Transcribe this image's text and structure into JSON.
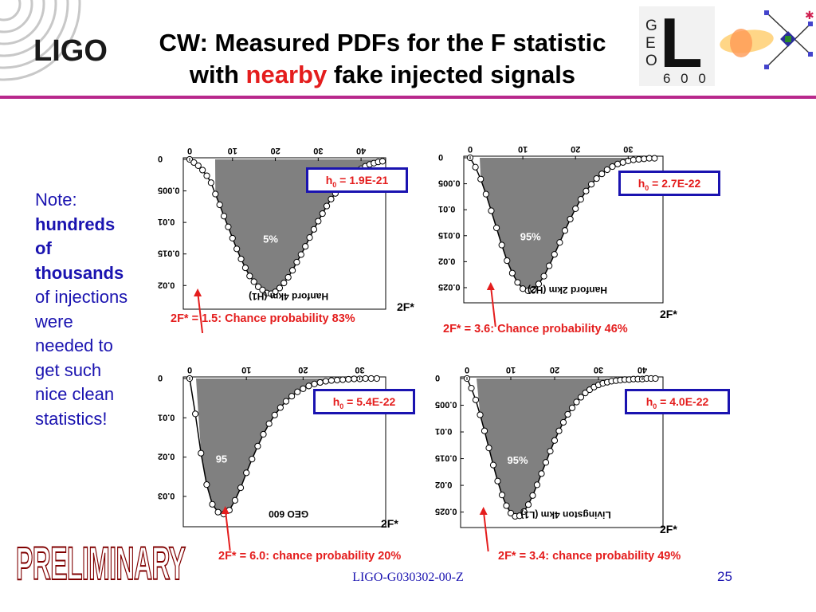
{
  "header": {
    "logo_text": "LIGO",
    "title_line1": "CW: Measured PDFs for the F statistic",
    "title_line2_pre": "with ",
    "title_line2_highlight": "nearby",
    "title_line2_post": " fake injected signals",
    "geo600_logo": {
      "letters": [
        "G",
        "E",
        "O"
      ],
      "big_letter": "L",
      "digits": "6 0 0"
    }
  },
  "note": {
    "line1": "Note:",
    "bold": [
      "hundreds",
      "of",
      "thousands"
    ],
    "rest": [
      "of injections",
      "were",
      "needed to",
      "get such",
      "nice clean",
      "statistics!"
    ]
  },
  "colors": {
    "accent_red": "#e41d1d",
    "note_blue": "#1a13b0",
    "header_rule": "#b8288c",
    "fill_gray": "#808080"
  },
  "chart_data": [
    {
      "type": "area",
      "detector_label": "Hanford 4km (H1)",
      "h0_label": "h0 = 1.9E-21",
      "percent_label": "5%",
      "xlabel": "2F*",
      "xticks": [
        "0",
        "10",
        "20",
        "30",
        "40"
      ],
      "yticks": [
        "0",
        "0.005",
        "0.01",
        "0.015",
        "0.02"
      ],
      "xlim": [
        0,
        45
      ],
      "ylim": [
        0,
        0.023
      ],
      "marker_x": 1.5,
      "caption": "2F* = 1.5: Chance probability 83%",
      "x": [
        0,
        1,
        2,
        3,
        4,
        5,
        6,
        7,
        8,
        9,
        10,
        11,
        12,
        13,
        14,
        15,
        16,
        17,
        18,
        19,
        20,
        21,
        22,
        23,
        24,
        25,
        26,
        27,
        28,
        29,
        30,
        31,
        32,
        33,
        34,
        35,
        36,
        37,
        38,
        39,
        40,
        41,
        42,
        43,
        44,
        45
      ],
      "y": [
        0,
        0.0005,
        0.001,
        0.0017,
        0.0026,
        0.0037,
        0.0055,
        0.0072,
        0.009,
        0.0107,
        0.0125,
        0.0142,
        0.0158,
        0.0172,
        0.0185,
        0.0194,
        0.0202,
        0.0207,
        0.0212,
        0.0213,
        0.021,
        0.0204,
        0.0196,
        0.0187,
        0.0176,
        0.0163,
        0.0151,
        0.0138,
        0.0124,
        0.0111,
        0.0098,
        0.0086,
        0.0074,
        0.0063,
        0.0054,
        0.0045,
        0.0037,
        0.003,
        0.0024,
        0.0019,
        0.0015,
        0.0011,
        0.0008,
        0.0006,
        0.0004,
        0.0003
      ]
    },
    {
      "type": "area",
      "detector_label": "Hanford 2km (H2)",
      "h0_label": "h0 = 2.7E-22",
      "percent_label": "95%",
      "xlabel": "2F*",
      "xticks": [
        "0",
        "10",
        "20",
        "30"
      ],
      "yticks": [
        "0",
        "0.005",
        "0.01",
        "0.015",
        "0.02",
        "0.025"
      ],
      "xlim": [
        0,
        36
      ],
      "ylim": [
        0,
        0.027
      ],
      "marker_x": 3.6,
      "caption": "2F* = 3.6: Chance probability 46%",
      "x": [
        0,
        1,
        2,
        3,
        4,
        5,
        6,
        7,
        8,
        9,
        10,
        11,
        12,
        13,
        14,
        15,
        16,
        17,
        18,
        19,
        20,
        21,
        22,
        23,
        24,
        25,
        26,
        27,
        28,
        29,
        30,
        31,
        32,
        33,
        34,
        35
      ],
      "y": [
        0,
        0.0018,
        0.0041,
        0.007,
        0.0102,
        0.0135,
        0.0168,
        0.0198,
        0.0222,
        0.024,
        0.0252,
        0.0256,
        0.0253,
        0.0243,
        0.0228,
        0.0208,
        0.0186,
        0.0163,
        0.014,
        0.0118,
        0.0098,
        0.008,
        0.0064,
        0.0051,
        0.004,
        0.0031,
        0.0023,
        0.0017,
        0.0012,
        0.0009,
        0.0006,
        0.0004,
        0.0003,
        0.0002,
        0.0001,
        0.0001
      ]
    },
    {
      "type": "area",
      "detector_label": "GEO 600",
      "h0_label": "h0 = 5.4E-22",
      "percent_label": "95",
      "xlabel": "2F*",
      "xticks": [
        "0",
        "10",
        "20",
        "30"
      ],
      "yticks": [
        "0",
        "0.01",
        "0.02",
        "0.03"
      ],
      "xlim": [
        0,
        34
      ],
      "ylim": [
        0,
        0.0365
      ],
      "marker_x": 6.0,
      "caption": "2F* = 6.0: chance probability 20%",
      "x": [
        0,
        1,
        2,
        3,
        4,
        5,
        6,
        7,
        8,
        9,
        10,
        11,
        12,
        13,
        14,
        15,
        16,
        17,
        18,
        19,
        20,
        21,
        22,
        23,
        24,
        25,
        26,
        27,
        28,
        29,
        30,
        31,
        32,
        33
      ],
      "y": [
        0,
        0.009,
        0.019,
        0.027,
        0.032,
        0.034,
        0.0345,
        0.0335,
        0.031,
        0.0278,
        0.024,
        0.0205,
        0.0172,
        0.0142,
        0.0115,
        0.0093,
        0.0074,
        0.0058,
        0.0045,
        0.0034,
        0.0026,
        0.0019,
        0.0014,
        0.001,
        0.0007,
        0.0005,
        0.0004,
        0.0003,
        0.0002,
        0.0001,
        0.0001,
        0,
        0,
        0
      ]
    },
    {
      "type": "area",
      "detector_label": "Livingston 4km (L1)",
      "h0_label": "h0 = 4.0E-22",
      "percent_label": "95%",
      "xlabel": "2F*",
      "xticks": [
        "0",
        "10",
        "20",
        "30",
        "40"
      ],
      "yticks": [
        "0",
        "0.005",
        "0.01",
        "0.015",
        "0.02",
        "0.025"
      ],
      "xlim": [
        0,
        44
      ],
      "ylim": [
        0,
        0.027
      ],
      "marker_x": 3.4,
      "caption": "2F* = 3.4: chance probability 49%",
      "x": [
        0,
        1,
        2,
        3,
        4,
        5,
        6,
        7,
        8,
        9,
        10,
        11,
        12,
        13,
        14,
        15,
        16,
        17,
        18,
        19,
        20,
        21,
        22,
        23,
        24,
        25,
        26,
        27,
        28,
        29,
        30,
        31,
        32,
        33,
        34,
        35,
        36,
        37,
        38,
        39,
        40,
        41,
        42,
        43
      ],
      "y": [
        0,
        0.0018,
        0.004,
        0.0068,
        0.0098,
        0.013,
        0.0162,
        0.0192,
        0.0218,
        0.0238,
        0.0252,
        0.0258,
        0.0257,
        0.0249,
        0.0236,
        0.0219,
        0.0199,
        0.0178,
        0.0157,
        0.0136,
        0.0116,
        0.0098,
        0.0082,
        0.0067,
        0.0055,
        0.0044,
        0.0035,
        0.0027,
        0.0021,
        0.0016,
        0.0012,
        0.0009,
        0.0007,
        0.0005,
        0.0004,
        0.0003,
        0.0002,
        0.0002,
        0.0001,
        0.0001,
        0.0001,
        0,
        0,
        0
      ]
    }
  ],
  "footer": {
    "watermark": "PRELIMINARY",
    "doc_id": "LIGO-G030302-00-Z",
    "page_number": "25"
  }
}
